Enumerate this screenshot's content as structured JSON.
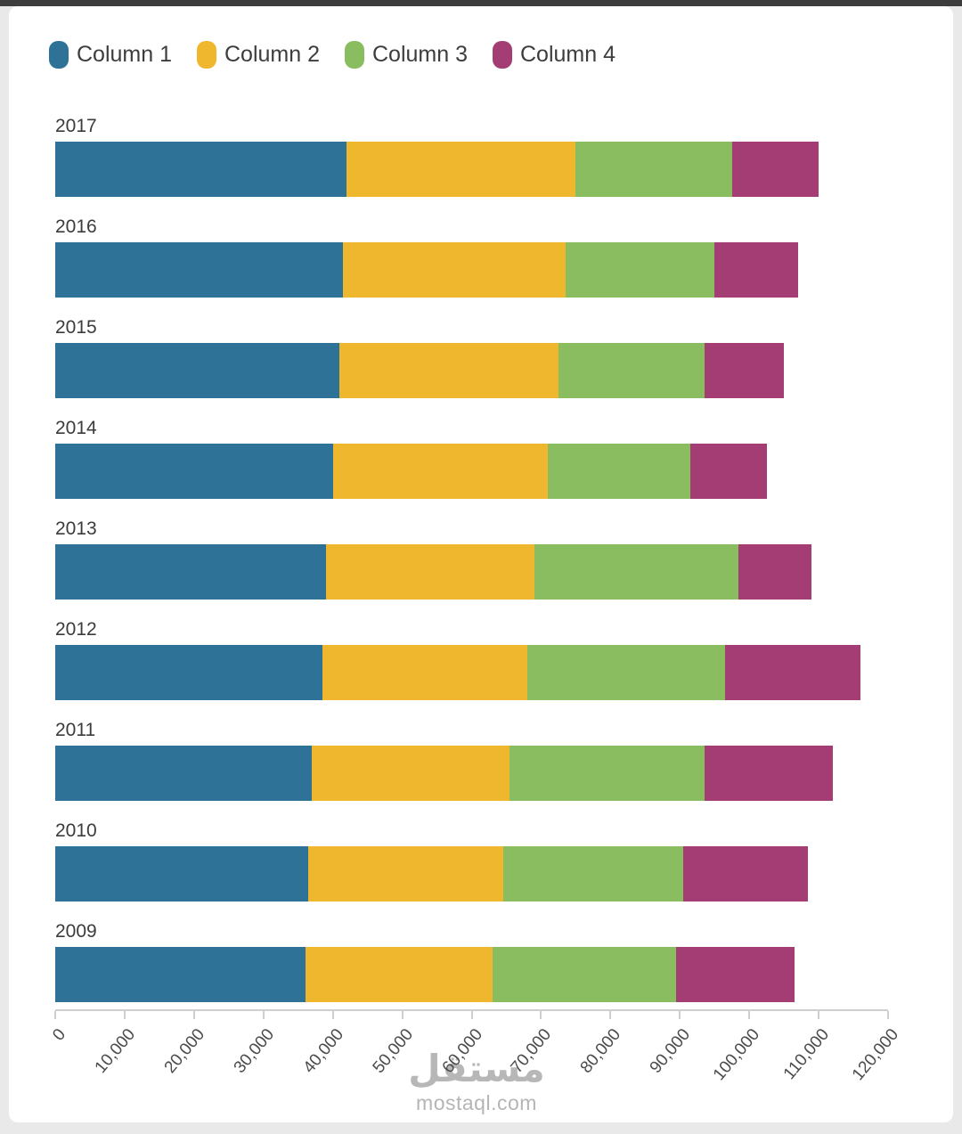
{
  "chart_data": {
    "type": "bar",
    "orientation": "horizontal",
    "stacked": true,
    "title": "",
    "xlabel": "",
    "ylabel": "",
    "grid": false,
    "legend_position": "top",
    "xlim": [
      0,
      120000
    ],
    "x_ticks": [
      "0",
      "10,000",
      "20,000",
      "30,000",
      "40,000",
      "50,000",
      "60,000",
      "70,000",
      "80,000",
      "90,000",
      "100,000",
      "110,000",
      "120,000"
    ],
    "categories": [
      "2017",
      "2016",
      "2015",
      "2014",
      "2013",
      "2012",
      "2011",
      "2010",
      "2009"
    ],
    "series": [
      {
        "name": "Column 1",
        "color": "#2e7297",
        "values": [
          42000,
          41500,
          41000,
          40000,
          39000,
          38500,
          37000,
          36500,
          36000
        ]
      },
      {
        "name": "Column 2",
        "color": "#efb72e",
        "values": [
          33000,
          32000,
          31500,
          31000,
          30000,
          29500,
          28500,
          28000,
          27000
        ]
      },
      {
        "name": "Column 3",
        "color": "#8abd5f",
        "values": [
          22500,
          21500,
          21000,
          20500,
          29500,
          28500,
          28000,
          26000,
          26500
        ]
      },
      {
        "name": "Column 4",
        "color": "#a43d73",
        "values": [
          12500,
          12000,
          11500,
          11000,
          10500,
          19500,
          18500,
          18000,
          17000
        ]
      }
    ]
  },
  "watermark": {
    "arabic": "مستقل",
    "latin": "mostaql.com"
  }
}
